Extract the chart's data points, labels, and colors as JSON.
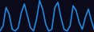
{
  "values": [
    5,
    20,
    75,
    55,
    10,
    5,
    15,
    60,
    85,
    50,
    15,
    5,
    40,
    95,
    70,
    25,
    5,
    10,
    75,
    90,
    45,
    10,
    5,
    20,
    80,
    65,
    30,
    10,
    45,
    70,
    35,
    8
  ],
  "line_color": "#2288dd",
  "background_color": "#0a0a1a",
  "linewidth": 1.2
}
